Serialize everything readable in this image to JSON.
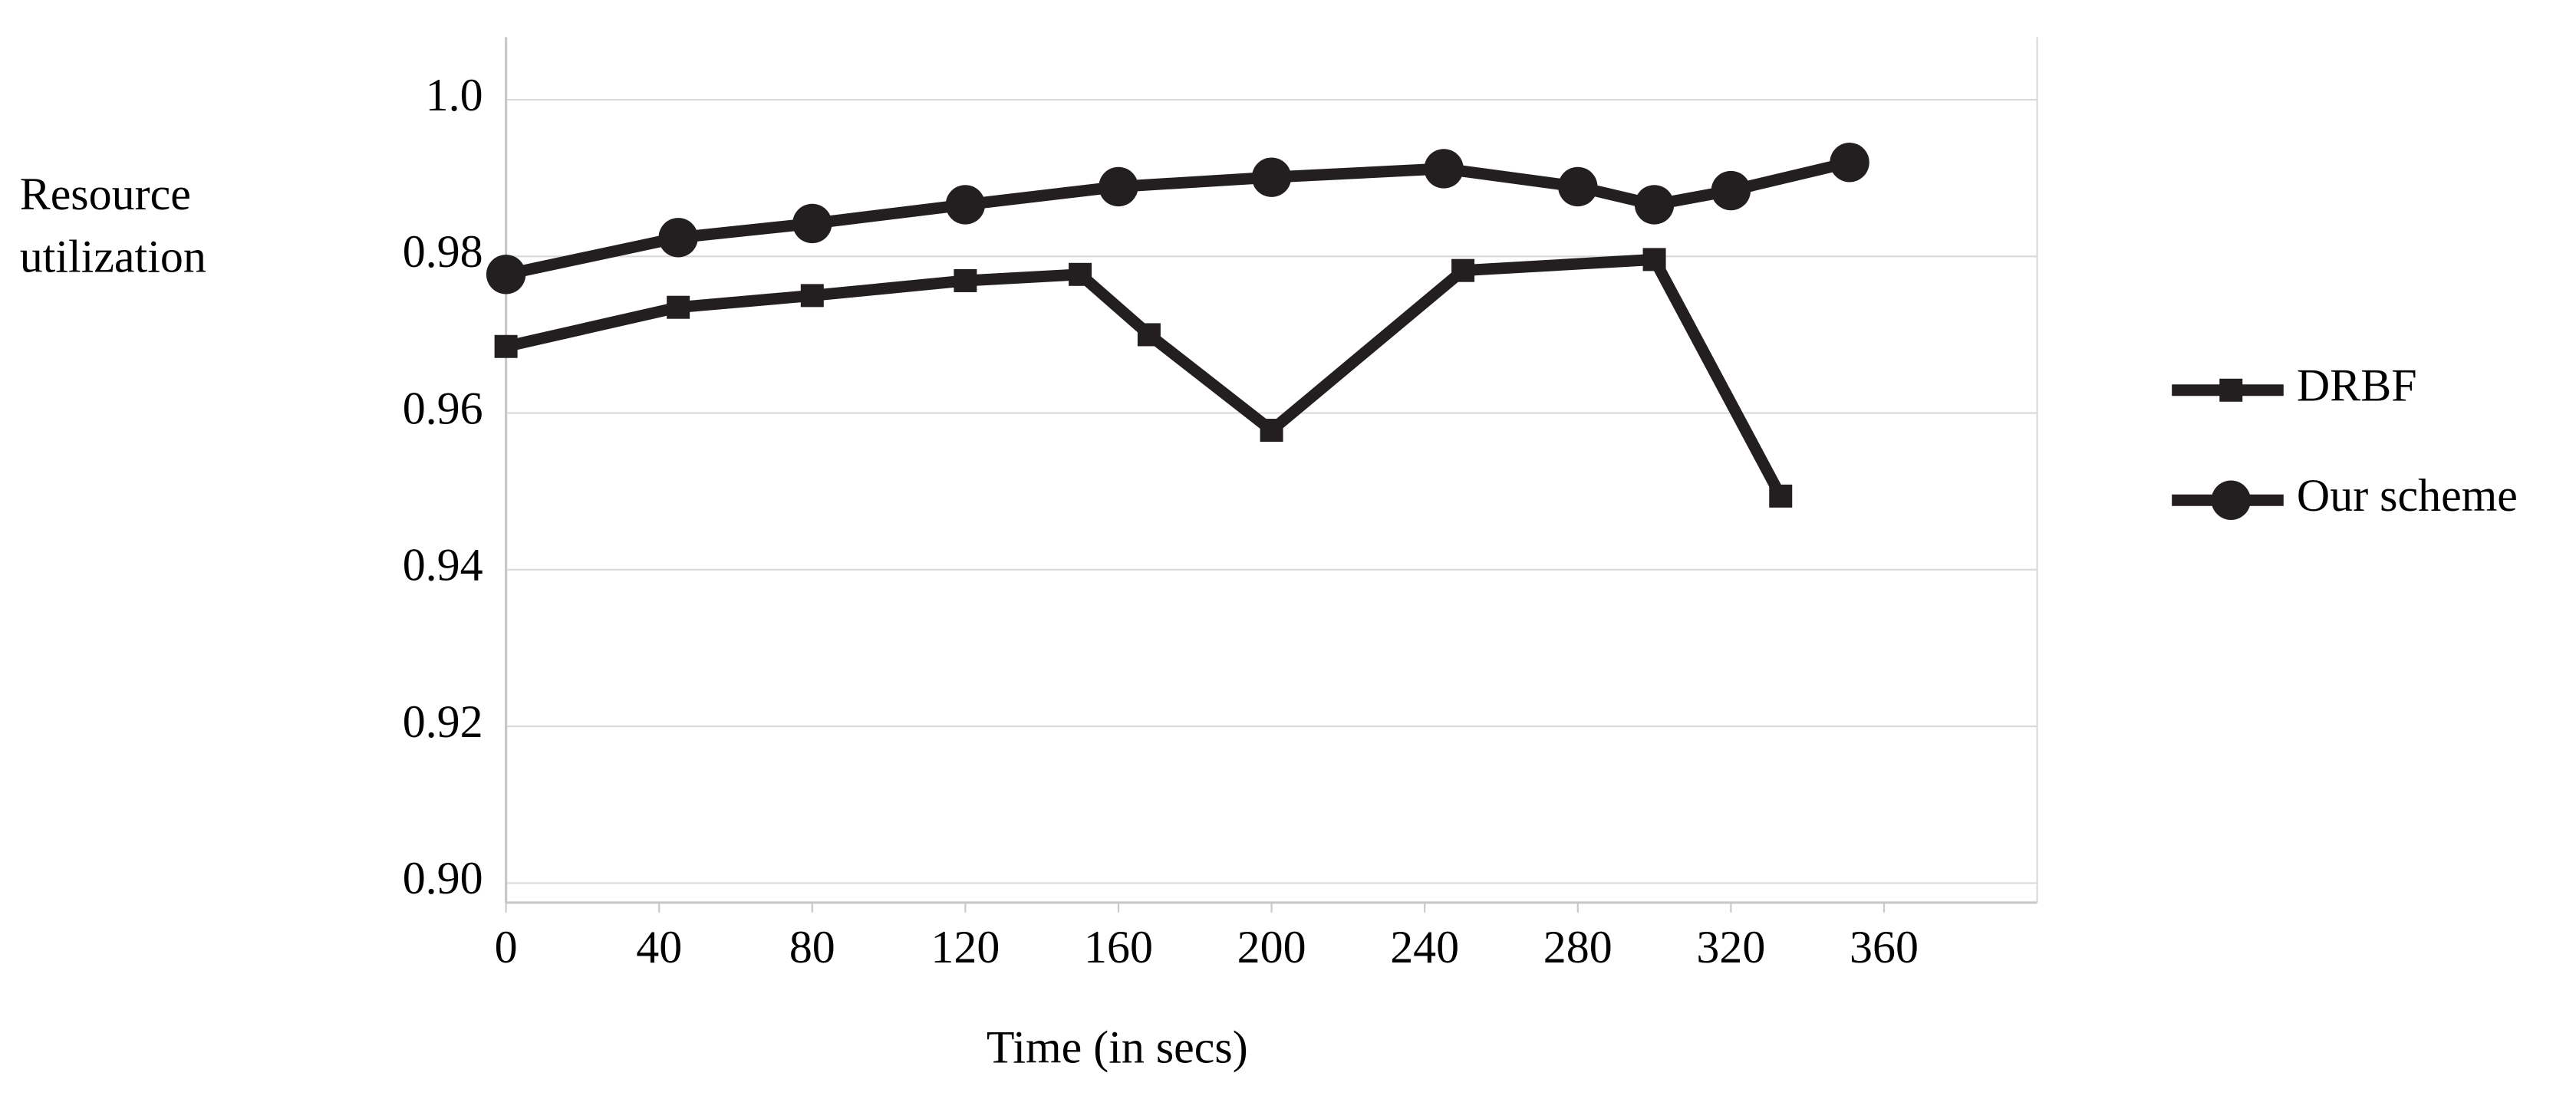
{
  "chart_data": {
    "type": "line",
    "x_label": "Time (in secs)",
    "y_label": "Resource utilization",
    "xlim": [
      0,
      400
    ],
    "xticks": [
      0,
      40,
      80,
      120,
      160,
      200,
      240,
      280,
      320,
      360
    ],
    "ylim": [
      0.8975,
      1.008
    ],
    "yticks": [
      {
        "value": 0.9,
        "label": "0.90"
      },
      0.92,
      0.94,
      0.96,
      0.98,
      {
        "value": 1,
        "label": "1.0"
      }
    ],
    "grid": true,
    "legend": "right",
    "series": [
      {
        "name": "DRBF",
        "color": "#231f20",
        "marker": "square",
        "x": [
          0,
          45,
          80,
          120,
          150,
          168,
          200,
          250,
          300,
          333
        ],
        "values": [
          0.9685,
          0.9735,
          0.975,
          0.9769,
          0.9777,
          0.97,
          0.9578,
          0.9782,
          0.9796,
          0.9494
        ]
      },
      {
        "name": "Our scheme",
        "color": "#231f20",
        "marker": "circle",
        "x": [
          0,
          45,
          80,
          120,
          160,
          200,
          245,
          280,
          300,
          320,
          351
        ],
        "values": [
          0.9777,
          0.9824,
          0.9842,
          0.9866,
          0.9889,
          0.9901,
          0.9912,
          0.9889,
          0.9866,
          0.9884,
          0.992
        ]
      }
    ]
  }
}
